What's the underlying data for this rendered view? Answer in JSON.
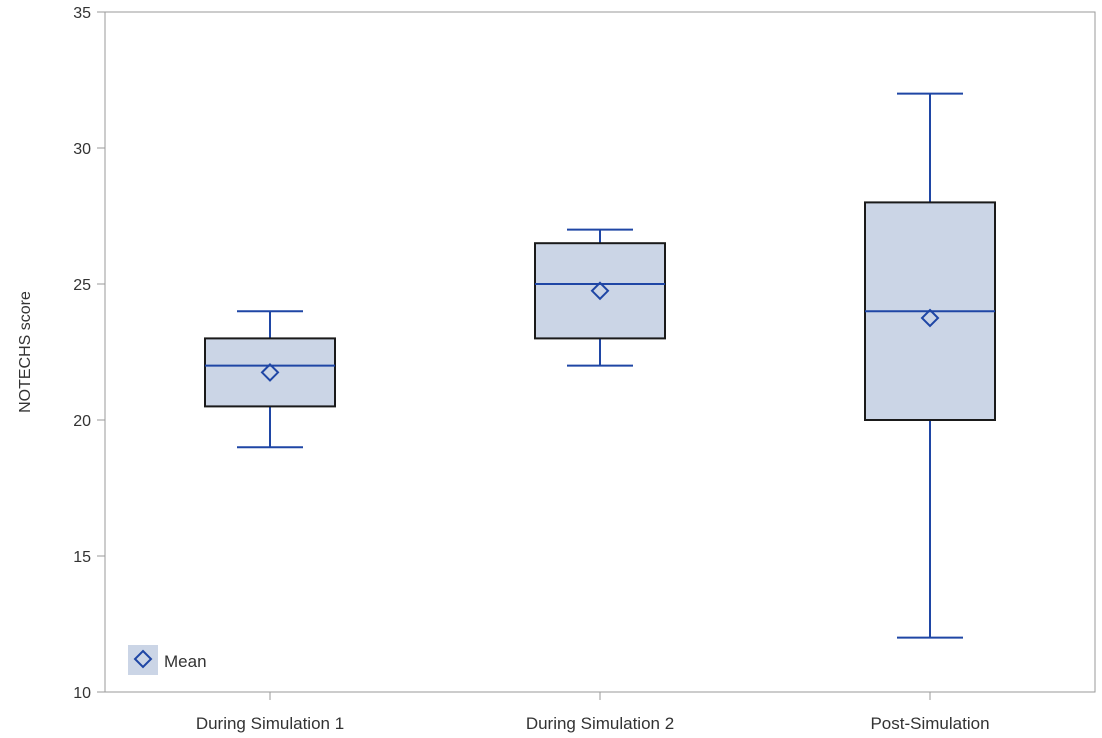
{
  "chart_data": {
    "type": "box",
    "ylabel": "NOTECHS score",
    "xlabel": "",
    "ylim": [
      10,
      35
    ],
    "yticks": [
      10,
      15,
      20,
      25,
      30,
      35
    ],
    "categories": [
      "During Simulation 1",
      "During Simulation 2",
      "Post-Simulation"
    ],
    "boxes": [
      {
        "category": "During Simulation 1",
        "min": 19,
        "q1": 20.5,
        "median": 22,
        "q3": 23,
        "max": 24,
        "mean": 21.75
      },
      {
        "category": "During Simulation 2",
        "min": 22,
        "q1": 23,
        "median": 25,
        "q3": 26.5,
        "max": 27,
        "mean": 24.75
      },
      {
        "category": "Post-Simulation",
        "min": 12,
        "q1": 20,
        "median": 24,
        "q3": 28,
        "max": 32,
        "mean": 23.75
      }
    ],
    "legend": {
      "entries": [
        "Mean"
      ],
      "position": "bottom-left"
    },
    "grid": false,
    "colors": {
      "box_fill": "#cbd5e6",
      "box_edge": "#1a1a1a",
      "whisker": "#1f46a5",
      "median": "#1f46a5",
      "mean_marker": "#1f46a5"
    }
  }
}
